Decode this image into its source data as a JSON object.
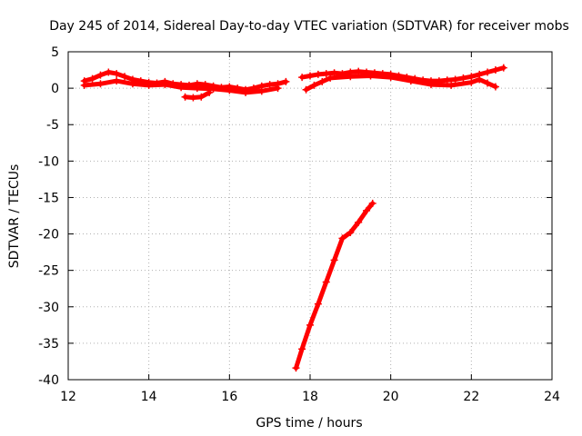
{
  "chart_data": {
    "type": "scatter",
    "title": "Day 245 of 2014, Sidereal Day-to-day VTEC variation (SDTVAR) for receiver mobs",
    "xlabel": "GPS time / hours",
    "ylabel": "SDTVAR / TECUs",
    "xlim": [
      12,
      24
    ],
    "ylim": [
      -40,
      5
    ],
    "xticks": [
      12,
      14,
      16,
      18,
      20,
      22,
      24
    ],
    "yticks": [
      5,
      0,
      -5,
      -10,
      -15,
      -20,
      -25,
      -30,
      -35,
      -40
    ],
    "grid": true,
    "marker": "+",
    "color": "#ff0000",
    "series": [
      {
        "name": "segment-1",
        "x": [
          12.4,
          12.6,
          12.8,
          13.0,
          13.2,
          13.4,
          13.6,
          13.8,
          14.0,
          14.2,
          14.4,
          14.6,
          14.8,
          15.0,
          15.2,
          15.4,
          15.6,
          15.8,
          16.0,
          16.2,
          16.4,
          16.6,
          16.8,
          17.0,
          17.2,
          17.4
        ],
        "y": [
          1.0,
          1.3,
          1.8,
          2.2,
          2.0,
          1.6,
          1.2,
          1.0,
          0.8,
          0.7,
          0.9,
          0.6,
          0.5,
          0.4,
          0.6,
          0.5,
          0.3,
          0.1,
          0.2,
          0.0,
          -0.2,
          0.0,
          0.3,
          0.5,
          0.6,
          0.9
        ]
      },
      {
        "name": "segment-1-lower",
        "x": [
          12.4,
          12.8,
          13.2,
          13.6,
          14.0,
          14.4,
          14.8,
          15.2,
          15.6,
          16.0,
          16.4,
          16.8,
          17.2
        ],
        "y": [
          0.4,
          0.6,
          1.0,
          0.6,
          0.4,
          0.5,
          0.1,
          0.0,
          -0.1,
          -0.3,
          -0.6,
          -0.4,
          0.0
        ]
      },
      {
        "name": "dip",
        "x": [
          14.9,
          15.1,
          15.3,
          15.5
        ],
        "y": [
          -1.2,
          -1.3,
          -1.2,
          -0.6
        ]
      },
      {
        "name": "segment-2",
        "x": [
          17.8,
          18.0,
          18.2,
          18.4,
          18.6,
          18.8,
          19.0,
          19.2,
          19.4,
          19.6,
          19.8,
          20.0,
          20.2,
          20.4,
          20.6,
          20.8,
          21.0,
          21.2,
          21.4,
          21.6,
          21.8,
          22.0,
          22.2,
          22.4,
          22.6,
          22.8
        ],
        "y": [
          1.5,
          1.7,
          1.9,
          2.0,
          2.1,
          2.0,
          2.2,
          2.3,
          2.2,
          2.1,
          2.0,
          1.9,
          1.7,
          1.5,
          1.3,
          1.1,
          1.0,
          1.0,
          1.1,
          1.2,
          1.4,
          1.6,
          1.9,
          2.2,
          2.5,
          2.8
        ]
      },
      {
        "name": "segment-2-lower",
        "x": [
          17.9,
          18.1,
          18.3,
          18.5,
          19.0,
          19.5,
          20.0,
          20.5,
          21.0,
          21.5,
          22.0,
          22.2,
          22.4,
          22.6
        ],
        "y": [
          -0.2,
          0.4,
          0.9,
          1.4,
          1.6,
          1.7,
          1.5,
          1.0,
          0.5,
          0.4,
          0.8,
          1.2,
          0.7,
          0.2
        ]
      },
      {
        "name": "descent",
        "x": [
          17.65,
          17.8,
          18.0,
          18.2,
          18.4,
          18.6,
          18.8,
          19.0,
          19.2,
          19.4,
          19.55
        ],
        "y": [
          -38.4,
          -35.8,
          -32.5,
          -29.6,
          -26.6,
          -23.6,
          -20.6,
          -19.8,
          -18.4,
          -16.8,
          -15.8
        ]
      }
    ]
  }
}
